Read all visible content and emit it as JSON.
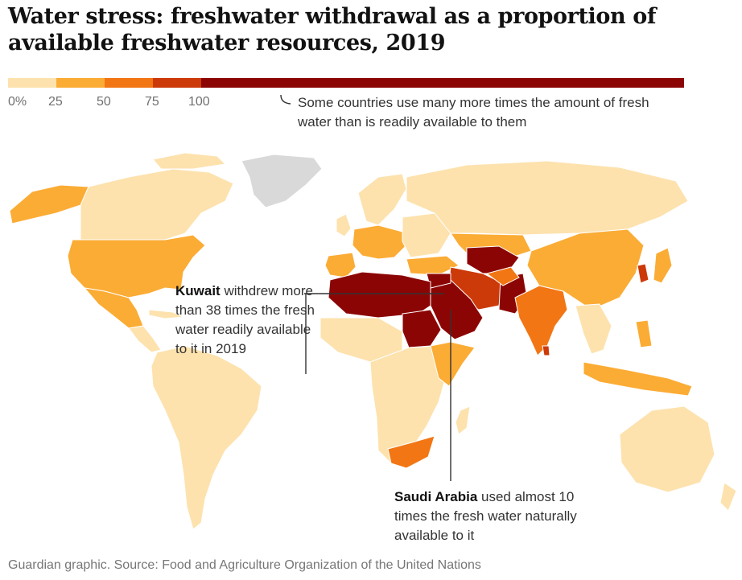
{
  "header": {
    "title": "Water stress: freshwater withdrawal as a proportion of available freshwater resources, 2019"
  },
  "legend": {
    "segments": [
      {
        "color": "#fde2ae"
      },
      {
        "color": "#fbac35"
      },
      {
        "color": "#f27614"
      },
      {
        "color": "#cc3a0a"
      },
      {
        "color": "#8c0505"
      }
    ],
    "ticks": [
      "0%",
      "25",
      "50",
      "75",
      "100"
    ],
    "note": "Some countries use many more times the amount of fresh water than is readily available to them"
  },
  "annotations": {
    "kuwait": {
      "name": "Kuwait",
      "text": " withdrew more than 38 times the fresh water readily available to it in 2019"
    },
    "saudi": {
      "name": "Saudi Arabia",
      "text": " used almost 10 times the fresh water naturally available to it"
    }
  },
  "colors": {
    "lowest": "#fde2ae",
    "low": "#fbac35",
    "medium": "#f27614",
    "high": "#cc3a0a",
    "extreme": "#8c0505",
    "no_data": "#d9d9d9"
  },
  "source": "Guardian graphic. Source: Food and Agriculture Organization of the United Nations"
}
